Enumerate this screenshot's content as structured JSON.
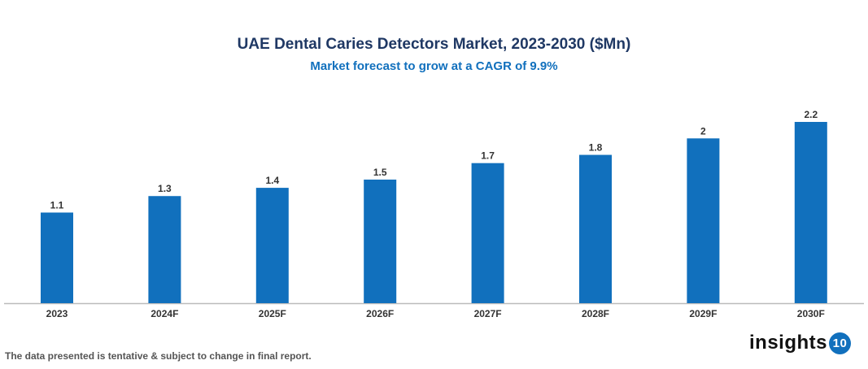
{
  "chart_data": {
    "type": "bar",
    "title": "UAE Dental Caries Detectors Market, 2023-2030 ($Mn)",
    "subtitle": "Market forecast to grow at a CAGR of 9.9%",
    "categories": [
      "2023",
      "2024F",
      "2025F",
      "2026F",
      "2027F",
      "2028F",
      "2029F",
      "2030F"
    ],
    "values": [
      1.1,
      1.3,
      1.4,
      1.5,
      1.7,
      1.8,
      2,
      2.2
    ],
    "xlabel": "",
    "ylabel": "",
    "ylim": [
      0,
      2.2
    ],
    "grid": false,
    "bar_color": "#1170bd"
  },
  "footer": {
    "note": "The data presented is tentative & subject to change in final report."
  },
  "logo": {
    "text": "insights",
    "number": "10"
  }
}
